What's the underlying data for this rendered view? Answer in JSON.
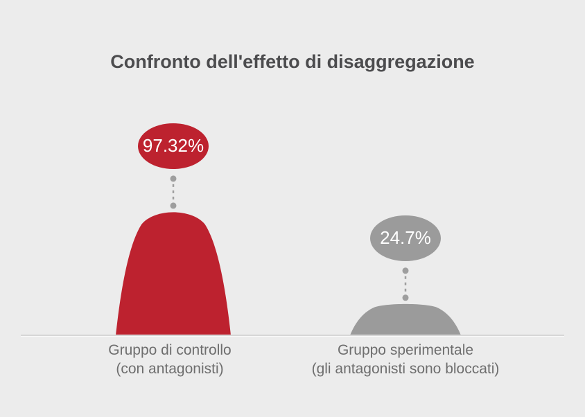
{
  "title": "Confronto dell'effetto di disaggregazione",
  "palette": {
    "background": "#ececec",
    "baseline": "#d6d6d6",
    "connector": "#9e9e9e",
    "title_text": "#4c4c4e",
    "label_text": "#6e6e6e",
    "badge_text": "#ffffff",
    "control_red": "#bd222f",
    "experimental_gray": "#9b9b9b"
  },
  "chart_data": {
    "type": "area",
    "shape": "bell-curve",
    "title": "Confronto dell'effetto di disaggregazione",
    "unit": "%",
    "ylim": [
      0,
      100
    ],
    "grid": false,
    "legend": "none",
    "categories": [
      "Gruppo di controllo (con antagonisti)",
      "Gruppo sperimentale (gli antagonisti sono bloccati)"
    ],
    "series": [
      {
        "name": "Gruppo di controllo",
        "sublabel": "(con antagonisti)",
        "value": 97.32,
        "value_label": "97.32%",
        "color": "#bd222f"
      },
      {
        "name": "Gruppo sperimentale",
        "sublabel": "(gli antagonisti sono bloccati)",
        "value": 24.7,
        "value_label": "24.7%",
        "color": "#9b9b9b"
      }
    ]
  }
}
